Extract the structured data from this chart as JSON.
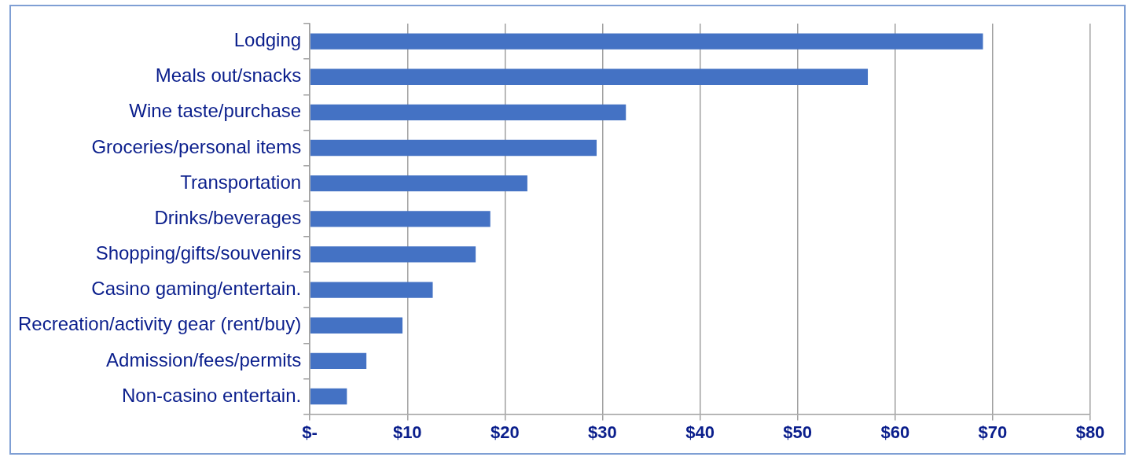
{
  "chart_data": {
    "type": "bar",
    "orientation": "horizontal",
    "categories": [
      "Lodging",
      "Meals out/snacks",
      "Wine taste/purchase",
      "Groceries/personal items",
      "Transportation",
      "Drinks/beverages",
      "Shopping/gifts/souvenirs",
      "Casino gaming/entertain.",
      "Recreation/activity gear (rent/buy)",
      "Admission/fees/permits",
      "Non-casino entertain."
    ],
    "values": [
      69.0,
      57.2,
      32.4,
      29.4,
      22.3,
      18.5,
      17.0,
      12.6,
      9.5,
      5.8,
      3.8
    ],
    "color": "#4472c4",
    "xlim": [
      0,
      80
    ],
    "xticks": [
      {
        "value": 0,
        "label": "$-"
      },
      {
        "value": 10,
        "label": "$10"
      },
      {
        "value": 20,
        "label": "$20"
      },
      {
        "value": 30,
        "label": "$30"
      },
      {
        "value": 40,
        "label": "$40"
      },
      {
        "value": 50,
        "label": "$50"
      },
      {
        "value": 60,
        "label": "$60"
      },
      {
        "value": 70,
        "label": "$70"
      },
      {
        "value": 80,
        "label": "$80"
      }
    ],
    "grid": "x"
  }
}
